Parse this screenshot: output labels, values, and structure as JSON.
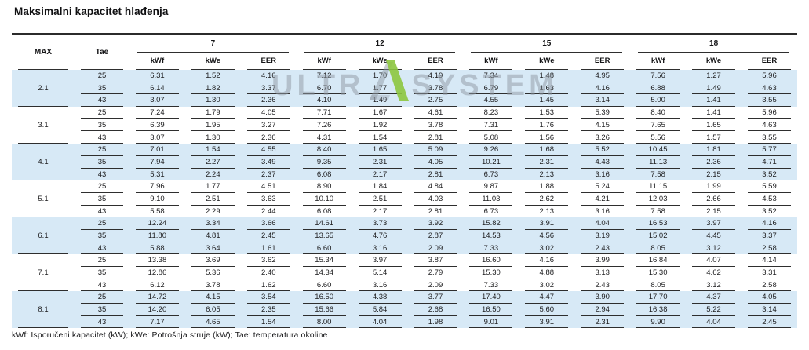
{
  "title": "Maksimalni kapacitet hlađenja",
  "footnote": "kWf: Isporučeni kapacitet (kW); kWe: Potrošnja struje (kW); Tae: temperatura okoline",
  "watermark": {
    "left_text": "ULTR",
    "right_text": "SYSTEM",
    "triangle_color": "#8dc63f",
    "letter_color": "rgba(146,156,165,0.52)"
  },
  "colors": {
    "stripe_blue": "#d7e9f6",
    "rule_line": "#2e2e2e"
  },
  "table": {
    "corner_headers": [
      "MAX",
      "Tae"
    ],
    "groups": [
      "7",
      "12",
      "15",
      "18"
    ],
    "sub_headers": [
      "kWf",
      "kWe",
      "EER"
    ],
    "blocks": [
      {
        "max": "2.1",
        "rows": [
          {
            "tae": "25",
            "values": [
              "6.31",
              "1.52",
              "4.16",
              "7.12",
              "1.70",
              "4.19",
              "7.34",
              "1.48",
              "4.95",
              "7.56",
              "1.27",
              "5.96"
            ]
          },
          {
            "tae": "35",
            "values": [
              "6.14",
              "1.82",
              "3.37",
              "6.70",
              "1.77",
              "3.78",
              "6.79",
              "1.63",
              "4.16",
              "6.88",
              "1.49",
              "4.63"
            ]
          },
          {
            "tae": "43",
            "values": [
              "3.07",
              "1.30",
              "2.36",
              "4.10",
              "1.49",
              "2.75",
              "4.55",
              "1.45",
              "3.14",
              "5.00",
              "1.41",
              "3.55"
            ]
          }
        ]
      },
      {
        "max": "3.1",
        "rows": [
          {
            "tae": "25",
            "values": [
              "7.24",
              "1.79",
              "4.05",
              "7.71",
              "1.67",
              "4.61",
              "8.23",
              "1.53",
              "5.39",
              "8.40",
              "1.41",
              "5.96"
            ]
          },
          {
            "tae": "35",
            "values": [
              "6.39",
              "1.95",
              "3.27",
              "7.26",
              "1.92",
              "3.78",
              "7.31",
              "1.76",
              "4.15",
              "7.65",
              "1.65",
              "4.63"
            ]
          },
          {
            "tae": "43",
            "values": [
              "3.07",
              "1.30",
              "2.36",
              "4.31",
              "1.54",
              "2.81",
              "5.08",
              "1.56",
              "3.26",
              "5.56",
              "1.57",
              "3.55"
            ]
          }
        ]
      },
      {
        "max": "4.1",
        "rows": [
          {
            "tae": "25",
            "values": [
              "7.01",
              "1.54",
              "4.55",
              "8.40",
              "1.65",
              "5.09",
              "9.26",
              "1.68",
              "5.52",
              "10.45",
              "1.81",
              "5.77"
            ]
          },
          {
            "tae": "35",
            "values": [
              "7.94",
              "2.27",
              "3.49",
              "9.35",
              "2.31",
              "4.05",
              "10.21",
              "2.31",
              "4.43",
              "11.13",
              "2.36",
              "4.71"
            ]
          },
          {
            "tae": "43",
            "values": [
              "5.31",
              "2.24",
              "2.37",
              "6.08",
              "2.17",
              "2.81",
              "6.73",
              "2.13",
              "3.16",
              "7.58",
              "2.15",
              "3.52"
            ]
          }
        ]
      },
      {
        "max": "5.1",
        "rows": [
          {
            "tae": "25",
            "values": [
              "7.96",
              "1.77",
              "4.51",
              "8.90",
              "1.84",
              "4.84",
              "9.87",
              "1.88",
              "5.24",
              "11.15",
              "1.99",
              "5.59"
            ]
          },
          {
            "tae": "35",
            "values": [
              "9.10",
              "2.51",
              "3.63",
              "10.10",
              "2.51",
              "4.03",
              "11.03",
              "2.62",
              "4.21",
              "12.03",
              "2.66",
              "4.53"
            ]
          },
          {
            "tae": "43",
            "values": [
              "5.58",
              "2.29",
              "2.44",
              "6.08",
              "2.17",
              "2.81",
              "6.73",
              "2.13",
              "3.16",
              "7.58",
              "2.15",
              "3.52"
            ]
          }
        ]
      },
      {
        "max": "6.1",
        "rows": [
          {
            "tae": "25",
            "values": [
              "12.24",
              "3.34",
              "3.66",
              "14.61",
              "3.73",
              "3.92",
              "15.82",
              "3.91",
              "4.04",
              "16.53",
              "3.97",
              "4.16"
            ]
          },
          {
            "tae": "35",
            "values": [
              "11.80",
              "4.81",
              "2.45",
              "13.65",
              "4.76",
              "2.87",
              "14.53",
              "4.56",
              "3.19",
              "15.02",
              "4.45",
              "3.37"
            ]
          },
          {
            "tae": "43",
            "values": [
              "5.88",
              "3.64",
              "1.61",
              "6.60",
              "3.16",
              "2.09",
              "7.33",
              "3.02",
              "2.43",
              "8.05",
              "3.12",
              "2.58"
            ]
          }
        ]
      },
      {
        "max": "7.1",
        "rows": [
          {
            "tae": "25",
            "values": [
              "13.38",
              "3.69",
              "3.62",
              "15.34",
              "3.97",
              "3.87",
              "16.60",
              "4.16",
              "3.99",
              "16.84",
              "4.07",
              "4.14"
            ]
          },
          {
            "tae": "35",
            "values": [
              "12.86",
              "5.36",
              "2.40",
              "14.34",
              "5.14",
              "2.79",
              "15.30",
              "4.88",
              "3.13",
              "15.30",
              "4.62",
              "3.31"
            ]
          },
          {
            "tae": "43",
            "values": [
              "6.12",
              "3.78",
              "1.62",
              "6.60",
              "3.16",
              "2.09",
              "7.33",
              "3.02",
              "2.43",
              "8.05",
              "3.12",
              "2.58"
            ]
          }
        ]
      },
      {
        "max": "8.1",
        "rows": [
          {
            "tae": "25",
            "values": [
              "14.72",
              "4.15",
              "3.54",
              "16.50",
              "4.38",
              "3.77",
              "17.40",
              "4.47",
              "3.90",
              "17.70",
              "4.37",
              "4.05"
            ]
          },
          {
            "tae": "35",
            "values": [
              "14.20",
              "6.05",
              "2.35",
              "15.66",
              "5.84",
              "2.68",
              "16.50",
              "5.60",
              "2.94",
              "16.38",
              "5.22",
              "3.14"
            ]
          },
          {
            "tae": "43",
            "values": [
              "7.17",
              "4.65",
              "1.54",
              "8.00",
              "4.04",
              "1.98",
              "9.01",
              "3.91",
              "2.31",
              "9.90",
              "4.04",
              "2.45"
            ]
          }
        ]
      }
    ]
  }
}
